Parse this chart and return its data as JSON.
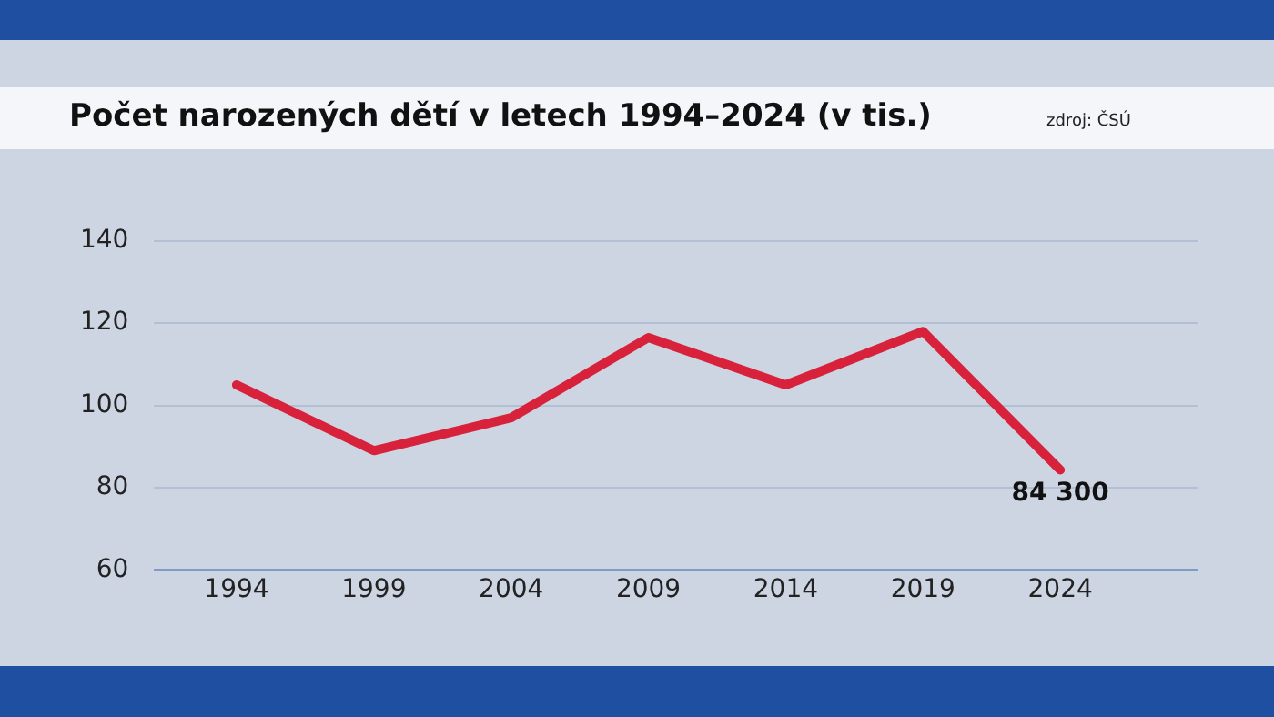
{
  "chart_data": {
    "type": "line",
    "title": "Počet narozených dětí v letech 1994–2024 (v tis.)",
    "annotations": [
      "zdroj: ČSÚ",
      {
        "text": "84 300",
        "x": 2024,
        "y": 84.3
      }
    ],
    "x": [
      1994,
      1999,
      2004,
      2009,
      2014,
      2019,
      2024
    ],
    "series": [
      {
        "color": "#d8213b",
        "values": [
          105,
          89,
          97,
          116.5,
          105,
          118,
          84.3
        ]
      }
    ],
    "xlim": [
      1991,
      2029
    ],
    "xticks": [
      1994,
      1999,
      2004,
      2009,
      2014,
      2019,
      2024
    ],
    "ylim": [
      60,
      140
    ],
    "yticks": [
      60,
      80,
      100,
      120,
      140
    ],
    "grid": "y",
    "legend": false,
    "marker": "none",
    "line_style": "solid"
  }
}
